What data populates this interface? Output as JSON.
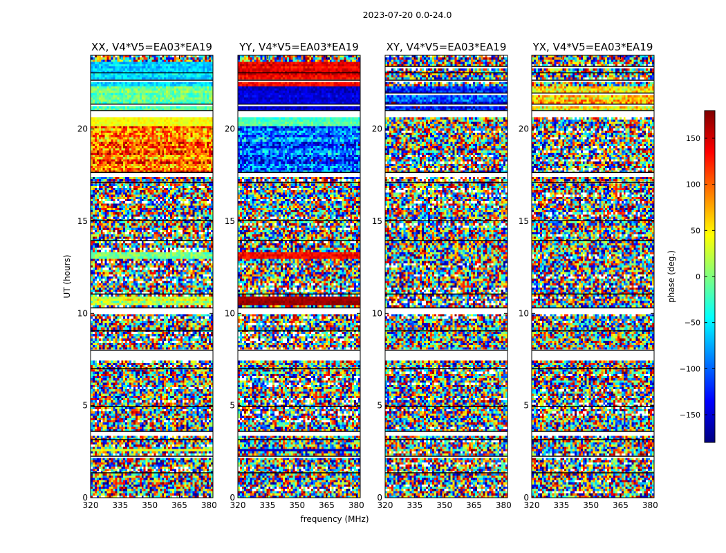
{
  "chart_data": {
    "type": "heatmap",
    "suptitle": "2023-07-20 0.0-24.0",
    "xlabel": "frequency (MHz)",
    "ylabel": "UT (hours)",
    "xlim": [
      320,
      382
    ],
    "ylim": [
      0,
      24
    ],
    "x_ticks": [
      320,
      335,
      350,
      365,
      380
    ],
    "y_ticks": [
      0,
      5,
      10,
      15,
      20
    ],
    "colorbar": {
      "label": "phase (deg.)",
      "range": [
        -180,
        180
      ],
      "ticks": [
        -150,
        -100,
        -50,
        0,
        50,
        100,
        150
      ],
      "tick_labels": [
        "−150",
        "−100",
        "−50",
        "0",
        "50",
        "100",
        "150"
      ],
      "colormap": "jet",
      "colors": [
        "#00007f",
        "#0000ff",
        "#007fff",
        "#00ffff",
        "#7fff7f",
        "#ffff00",
        "#ff7f00",
        "#ff0000",
        "#7f0000"
      ]
    },
    "panels": [
      {
        "title": "XX, V4*V5=EA03*EA19",
        "coherent_bands": [
          {
            "ut": [
              22.3,
              23.6
            ],
            "phase": -60,
            "spread": 50
          },
          {
            "ut": [
              21.0,
              22.3
            ],
            "phase": -10,
            "spread": 60
          },
          {
            "ut": [
              20.2,
              20.6
            ],
            "phase": 40,
            "spread": 30
          },
          {
            "ut": [
              17.6,
              20.2
            ],
            "phase": 90,
            "spread": 120
          },
          {
            "ut": [
              12.9,
              13.3
            ],
            "phase": -10,
            "spread": 60
          },
          {
            "ut": [
              10.5,
              10.9
            ],
            "phase": 20,
            "spread": 80
          },
          {
            "ut": [
              2.5,
              2.7
            ],
            "phase": 40,
            "spread": 40
          }
        ]
      },
      {
        "title": "YY, V4*V5=EA03*EA19",
        "coherent_bands": [
          {
            "ut": [
              22.3,
              23.6
            ],
            "phase": 140,
            "spread": 40
          },
          {
            "ut": [
              21.0,
              22.3
            ],
            "phase": -150,
            "spread": 40
          },
          {
            "ut": [
              20.2,
              20.6
            ],
            "phase": -20,
            "spread": 40
          },
          {
            "ut": [
              17.6,
              20.2
            ],
            "phase": -100,
            "spread": 120
          },
          {
            "ut": [
              12.9,
              13.3
            ],
            "phase": 140,
            "spread": 40
          },
          {
            "ut": [
              10.5,
              10.9
            ],
            "phase": 170,
            "spread": 20
          },
          {
            "ut": [
              2.5,
              2.7
            ],
            "phase": -160,
            "spread": 30
          }
        ]
      },
      {
        "title": "XY, V4*V5=EA03*EA19",
        "coherent_bands": [
          {
            "ut": [
              21.0,
              22.3
            ],
            "phase": -120,
            "spread": 90
          }
        ]
      },
      {
        "title": "YX, V4*V5=EA03*EA19",
        "coherent_bands": [
          {
            "ut": [
              21.0,
              22.3
            ],
            "phase": 60,
            "spread": 100
          }
        ]
      }
    ],
    "flagged_gaps_ut": [
      [
        23.0,
        23.05
      ],
      [
        22.6,
        22.65
      ],
      [
        21.3,
        21.35
      ],
      [
        20.6,
        21.0
      ],
      [
        17.4,
        17.65
      ],
      [
        17.0,
        17.1
      ],
      [
        15.0,
        15.05
      ],
      [
        13.9,
        13.95
      ],
      [
        11.0,
        11.05
      ],
      [
        10.0,
        10.3
      ],
      [
        9.0,
        9.05
      ],
      [
        7.5,
        8.0
      ],
      [
        6.9,
        7.0
      ],
      [
        4.9,
        4.95
      ],
      [
        3.4,
        3.6
      ],
      [
        3.1,
        3.15
      ],
      [
        2.2,
        2.25
      ],
      [
        1.3,
        1.35
      ]
    ],
    "flagged_gaps_cross_extra_ut": [
      [
        23.3,
        23.4
      ],
      [
        21.9,
        21.95
      ]
    ]
  }
}
